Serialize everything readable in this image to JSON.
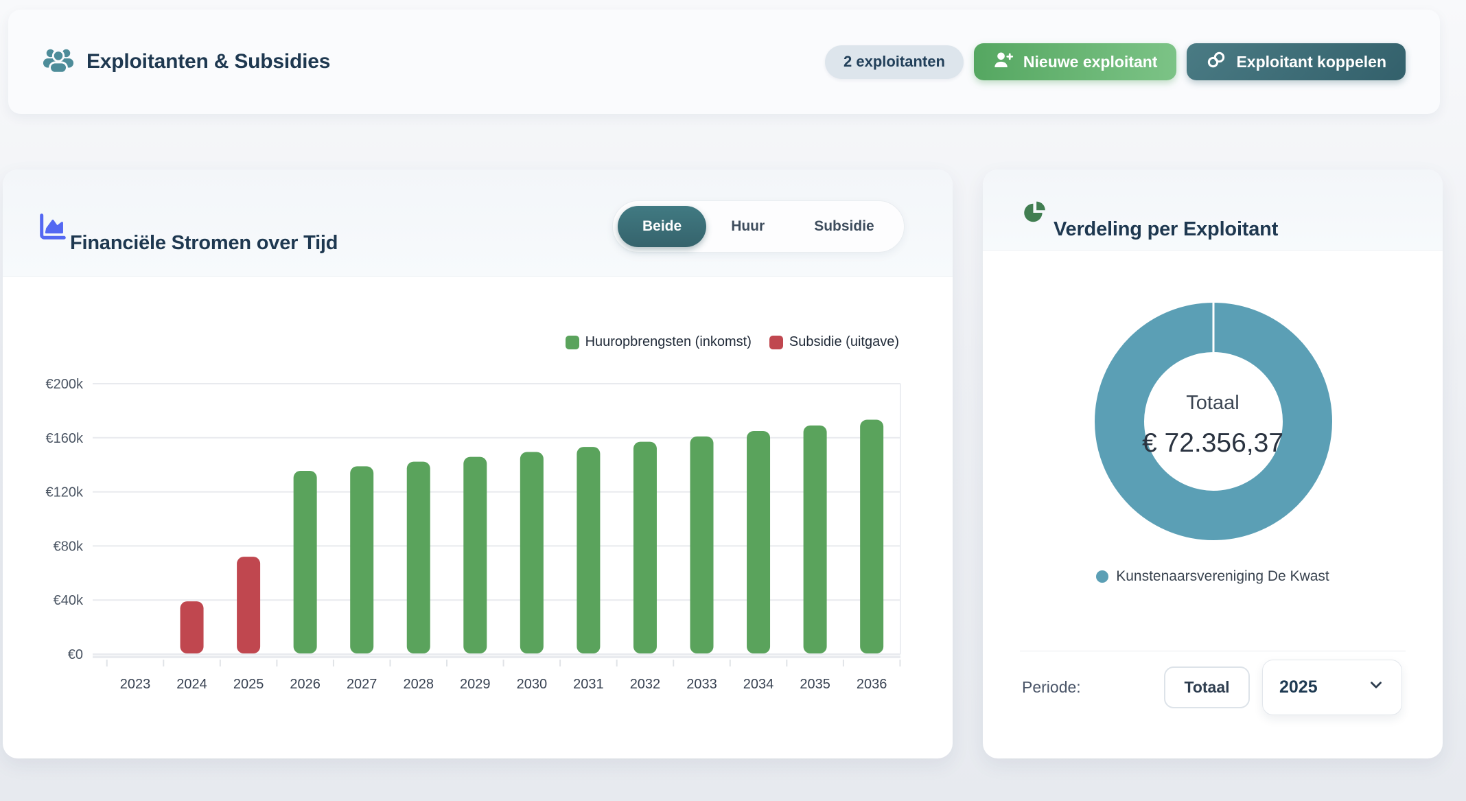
{
  "header": {
    "title": "Exploitanten & Subsidies",
    "badge": "2 exploitanten",
    "new_exploitant_button": "Nieuwe exploitant",
    "link_exploitant_button": "Exploitant koppelen"
  },
  "chart_card": {
    "title": "Financiële Stromen over Tijd",
    "toggle": {
      "options": [
        "Beide",
        "Huur",
        "Subsidie"
      ],
      "active": "Beide"
    }
  },
  "donut_card": {
    "title": "Verdeling per Exploitant",
    "periode_label": "Periode:",
    "totaal_button": "Totaal",
    "year_selected": "2025"
  },
  "colors": {
    "accent_teal": "#4d8c99",
    "button_green": "#55a761",
    "button_dark_teal": "#33606b",
    "bar_green": "#5aa35c",
    "bar_red": "#c0474f",
    "donut_teal": "#5b9fb5",
    "title_navy": "#1e3850"
  },
  "chart_data": [
    {
      "type": "bar",
      "title": "Financiële Stromen over Tijd",
      "categories": [
        "2023",
        "2024",
        "2025",
        "2026",
        "2027",
        "2028",
        "2029",
        "2030",
        "2031",
        "2032",
        "2033",
        "2034",
        "2035",
        "2036"
      ],
      "series": [
        {
          "name": "Huuropbrengsten (inkomst)",
          "color": "#5aa35c",
          "values": [
            0,
            0,
            0,
            135000,
            138375,
            141834,
            145380,
            149015,
            152740,
            156559,
            160473,
            164485,
            168597,
            172812
          ]
        },
        {
          "name": "Subsidie (uitgave)",
          "color": "#c0474f",
          "values": [
            0,
            38500,
            71500,
            0,
            0,
            0,
            0,
            0,
            0,
            0,
            0,
            0,
            0,
            0
          ]
        }
      ],
      "y_ticks": [
        {
          "label": "€0",
          "value": 0
        },
        {
          "label": "€40k",
          "value": 40000
        },
        {
          "label": "€80k",
          "value": 80000
        },
        {
          "label": "€120k",
          "value": 120000
        },
        {
          "label": "€160k",
          "value": 160000
        },
        {
          "label": "€200k",
          "value": 200000
        }
      ],
      "ylim": [
        0,
        200000
      ],
      "grid": true,
      "legend_position": "top-right"
    },
    {
      "type": "donut",
      "title": "Verdeling per Exploitant",
      "center_label": "Totaal",
      "center_value": "€ 72.356,37",
      "slices": [
        {
          "label": "Kunstenaarsvereniging De Kwast",
          "value": 72356.37,
          "color": "#5b9fb5"
        }
      ]
    }
  ]
}
